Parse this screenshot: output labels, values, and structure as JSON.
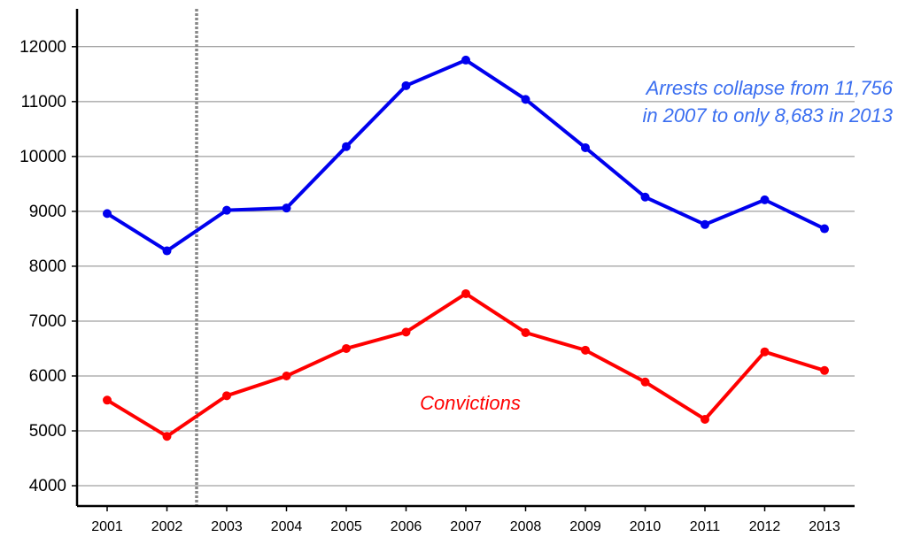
{
  "chart_data": {
    "type": "line",
    "categories": [
      "2001",
      "2002",
      "2003",
      "2004",
      "2005",
      "2006",
      "2007",
      "2008",
      "2009",
      "2010",
      "2011",
      "2012",
      "2013"
    ],
    "series": [
      {
        "color": "#0000ee",
        "values": [
          8960,
          8280,
          9020,
          9060,
          10180,
          11290,
          11756,
          11040,
          10160,
          9260,
          8760,
          9210,
          8683
        ]
      },
      {
        "name": "Convictions",
        "color": "#ff0000",
        "values": [
          5560,
          4900,
          5640,
          6000,
          6500,
          6800,
          7500,
          6790,
          6470,
          5890,
          5210,
          6440,
          6100
        ]
      }
    ],
    "annotation": [
      "Arrests collapse from 11,756",
      "in 2007 to only 8,683 in 2013"
    ],
    "ylim": [
      3630,
      12690
    ],
    "yticks": [
      4000,
      5000,
      6000,
      7000,
      8000,
      9000,
      10000,
      11000,
      12000
    ],
    "grid": true
  }
}
